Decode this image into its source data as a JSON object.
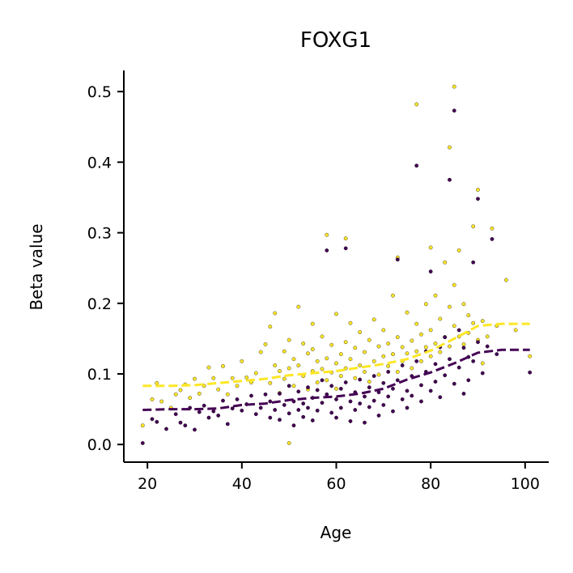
{
  "chart_data": {
    "type": "scatter",
    "title": "FOXG1",
    "xlabel": "Age",
    "ylabel": "Beta value",
    "xlim": [
      15,
      105
    ],
    "ylim": [
      -0.025,
      0.53
    ],
    "xticks": [
      20,
      40,
      60,
      80,
      100
    ],
    "xtick_labels": [
      "20",
      "40",
      "60",
      "80",
      "100"
    ],
    "yticks": [
      0.0,
      0.1,
      0.2,
      0.3,
      0.4,
      0.5
    ],
    "ytick_labels": [
      "0.0",
      "0.1",
      "0.2",
      "0.3",
      "0.4",
      "0.5"
    ],
    "grid": false,
    "series": [
      {
        "color": "#fde725",
        "trend_x": [
          19,
          25,
          30,
          35,
          40,
          45,
          50,
          55,
          60,
          65,
          70,
          75,
          80,
          85,
          90,
          95,
          101
        ],
        "trend_y": [
          0.083,
          0.083,
          0.084,
          0.087,
          0.09,
          0.093,
          0.098,
          0.101,
          0.104,
          0.109,
          0.114,
          0.121,
          0.133,
          0.15,
          0.168,
          0.171,
          0.171
        ],
        "points": [
          [
            19,
            0.027
          ],
          [
            21,
            0.064
          ],
          [
            22,
            0.087
          ],
          [
            23,
            0.061
          ],
          [
            25,
            0.052
          ],
          [
            26,
            0.071
          ],
          [
            27,
            0.077
          ],
          [
            28,
            0.085
          ],
          [
            29,
            0.066
          ],
          [
            30,
            0.093
          ],
          [
            31,
            0.072
          ],
          [
            32,
            0.083
          ],
          [
            33,
            0.109
          ],
          [
            34,
            0.094
          ],
          [
            35,
            0.078
          ],
          [
            36,
            0.111
          ],
          [
            37,
            0.071
          ],
          [
            38,
            0.094
          ],
          [
            39,
            0.083
          ],
          [
            40,
            0.118
          ],
          [
            41,
            0.095
          ],
          [
            42,
            0.088
          ],
          [
            43,
            0.101
          ],
          [
            44,
            0.131
          ],
          [
            45,
            0.142
          ],
          [
            46,
            0.087
          ],
          [
            46,
            0.167
          ],
          [
            47,
            0.112
          ],
          [
            47,
            0.186
          ],
          [
            48,
            0.104
          ],
          [
            48,
            0.073
          ],
          [
            49,
            0.132
          ],
          [
            49,
            0.093
          ],
          [
            50,
            0.108
          ],
          [
            50,
            0.148
          ],
          [
            50,
            0.002
          ],
          [
            51,
            0.121
          ],
          [
            51,
            0.083
          ],
          [
            52,
            0.195
          ],
          [
            52,
            0.112
          ],
          [
            53,
            0.143
          ],
          [
            53,
            0.097
          ],
          [
            54,
            0.129
          ],
          [
            54,
            0.078
          ],
          [
            55,
            0.171
          ],
          [
            55,
            0.104
          ],
          [
            55,
            0.135
          ],
          [
            56,
            0.118
          ],
          [
            56,
            0.088
          ],
          [
            57,
            0.153
          ],
          [
            57,
            0.107
          ],
          [
            58,
            0.297
          ],
          [
            58,
            0.122
          ],
          [
            58,
            0.091
          ],
          [
            59,
            0.141
          ],
          [
            59,
            0.102
          ],
          [
            60,
            0.185
          ],
          [
            60,
            0.115
          ],
          [
            60,
            0.079
          ],
          [
            61,
            0.128
          ],
          [
            61,
            0.097
          ],
          [
            62,
            0.292
          ],
          [
            62,
            0.145
          ],
          [
            62,
            0.108
          ],
          [
            63,
            0.172
          ],
          [
            63,
            0.121
          ],
          [
            64,
            0.094
          ],
          [
            64,
            0.137
          ],
          [
            65,
            0.112
          ],
          [
            65,
            0.159
          ],
          [
            66,
            0.103
          ],
          [
            66,
            0.131
          ],
          [
            67,
            0.089
          ],
          [
            67,
            0.148
          ],
          [
            68,
            0.118
          ],
          [
            68,
            0.177
          ],
          [
            69,
            0.099
          ],
          [
            69,
            0.139
          ],
          [
            70,
            0.125
          ],
          [
            70,
            0.162
          ],
          [
            71,
            0.111
          ],
          [
            71,
            0.143
          ],
          [
            72,
            0.211
          ],
          [
            72,
            0.128
          ],
          [
            73,
            0.265
          ],
          [
            73,
            0.103
          ],
          [
            73,
            0.152
          ],
          [
            74,
            0.138
          ],
          [
            74,
            0.118
          ],
          [
            75,
            0.187
          ],
          [
            75,
            0.129
          ],
          [
            76,
            0.147
          ],
          [
            76,
            0.108
          ],
          [
            77,
            0.482
          ],
          [
            77,
            0.171
          ],
          [
            77,
            0.132
          ],
          [
            78,
            0.156
          ],
          [
            78,
            0.118
          ],
          [
            79,
            0.199
          ],
          [
            79,
            0.138
          ],
          [
            80,
            0.279
          ],
          [
            80,
            0.162
          ],
          [
            80,
            0.125
          ],
          [
            81,
            0.211
          ],
          [
            81,
            0.143
          ],
          [
            82,
            0.178
          ],
          [
            82,
            0.131
          ],
          [
            83,
            0.258
          ],
          [
            83,
            0.152
          ],
          [
            84,
            0.421
          ],
          [
            84,
            0.195
          ],
          [
            84,
            0.139
          ],
          [
            85,
            0.507
          ],
          [
            85,
            0.226
          ],
          [
            85,
            0.168
          ],
          [
            86,
            0.275
          ],
          [
            86,
            0.153
          ],
          [
            87,
            0.199
          ],
          [
            87,
            0.142
          ],
          [
            88,
            0.183
          ],
          [
            88,
            0.158
          ],
          [
            89,
            0.309
          ],
          [
            89,
            0.172
          ],
          [
            90,
            0.361
          ],
          [
            90,
            0.148
          ],
          [
            91,
            0.115
          ],
          [
            91,
            0.175
          ],
          [
            92,
            0.153
          ],
          [
            93,
            0.306
          ],
          [
            94,
            0.168
          ],
          [
            96,
            0.233
          ],
          [
            98,
            0.162
          ],
          [
            101,
            0.125
          ]
        ]
      },
      {
        "color": "#440154",
        "trend_x": [
          19,
          25,
          30,
          35,
          40,
          45,
          50,
          55,
          60,
          65,
          70,
          75,
          80,
          85,
          90,
          95,
          101
        ],
        "trend_y": [
          0.049,
          0.05,
          0.05,
          0.051,
          0.056,
          0.058,
          0.063,
          0.066,
          0.068,
          0.072,
          0.079,
          0.092,
          0.102,
          0.115,
          0.13,
          0.134,
          0.134
        ],
        "points": [
          [
            19,
            0.002
          ],
          [
            21,
            0.036
          ],
          [
            22,
            0.032
          ],
          [
            24,
            0.022
          ],
          [
            26,
            0.043
          ],
          [
            27,
            0.031
          ],
          [
            28,
            0.027
          ],
          [
            29,
            0.052
          ],
          [
            30,
            0.021
          ],
          [
            31,
            0.046
          ],
          [
            32,
            0.055
          ],
          [
            33,
            0.038
          ],
          [
            34,
            0.047
          ],
          [
            35,
            0.041
          ],
          [
            36,
            0.062
          ],
          [
            37,
            0.029
          ],
          [
            38,
            0.051
          ],
          [
            39,
            0.064
          ],
          [
            40,
            0.048
          ],
          [
            41,
            0.057
          ],
          [
            42,
            0.069
          ],
          [
            43,
            0.043
          ],
          [
            44,
            0.052
          ],
          [
            45,
            0.071
          ],
          [
            46,
            0.038
          ],
          [
            46,
            0.061
          ],
          [
            47,
            0.049
          ],
          [
            48,
            0.072
          ],
          [
            48,
            0.035
          ],
          [
            49,
            0.056
          ],
          [
            50,
            0.044
          ],
          [
            50,
            0.083
          ],
          [
            51,
            0.061
          ],
          [
            51,
            0.027
          ],
          [
            52,
            0.075
          ],
          [
            52,
            0.049
          ],
          [
            53,
            0.058
          ],
          [
            53,
            0.039
          ],
          [
            54,
            0.081
          ],
          [
            54,
            0.052
          ],
          [
            55,
            0.066
          ],
          [
            55,
            0.034
          ],
          [
            56,
            0.077
          ],
          [
            56,
            0.048
          ],
          [
            57,
            0.059
          ],
          [
            57,
            0.091
          ],
          [
            58,
            0.275
          ],
          [
            58,
            0.071
          ],
          [
            59,
            0.045
          ],
          [
            59,
            0.083
          ],
          [
            60,
            0.064
          ],
          [
            60,
            0.038
          ],
          [
            61,
            0.079
          ],
          [
            61,
            0.052
          ],
          [
            62,
            0.278
          ],
          [
            62,
            0.088
          ],
          [
            63,
            0.061
          ],
          [
            63,
            0.033
          ],
          [
            64,
            0.074
          ],
          [
            64,
            0.049
          ],
          [
            65,
            0.092
          ],
          [
            65,
            0.058
          ],
          [
            66,
            0.068
          ],
          [
            66,
            0.031
          ],
          [
            67,
            0.081
          ],
          [
            67,
            0.053
          ],
          [
            68,
            0.097
          ],
          [
            68,
            0.062
          ],
          [
            69,
            0.074
          ],
          [
            69,
            0.041
          ],
          [
            70,
            0.087
          ],
          [
            70,
            0.056
          ],
          [
            71,
            0.103
          ],
          [
            71,
            0.068
          ],
          [
            72,
            0.079
          ],
          [
            72,
            0.047
          ],
          [
            73,
            0.262
          ],
          [
            73,
            0.091
          ],
          [
            74,
            0.064
          ],
          [
            74,
            0.112
          ],
          [
            75,
            0.076
          ],
          [
            75,
            0.052
          ],
          [
            76,
            0.097
          ],
          [
            76,
            0.069
          ],
          [
            77,
            0.395
          ],
          [
            77,
            0.118
          ],
          [
            78,
            0.084
          ],
          [
            78,
            0.061
          ],
          [
            79,
            0.103
          ],
          [
            79,
            0.132
          ],
          [
            80,
            0.245
          ],
          [
            80,
            0.076
          ],
          [
            81,
            0.114
          ],
          [
            81,
            0.089
          ],
          [
            82,
            0.138
          ],
          [
            82,
            0.067
          ],
          [
            83,
            0.152
          ],
          [
            83,
            0.098
          ],
          [
            84,
            0.375
          ],
          [
            84,
            0.121
          ],
          [
            85,
            0.473
          ],
          [
            85,
            0.086
          ],
          [
            86,
            0.162
          ],
          [
            86,
            0.109
          ],
          [
            87,
            0.137
          ],
          [
            87,
            0.072
          ],
          [
            88,
            0.124
          ],
          [
            88,
            0.091
          ],
          [
            89,
            0.258
          ],
          [
            89,
            0.118
          ],
          [
            90,
            0.348
          ],
          [
            90,
            0.145
          ],
          [
            91,
            0.101
          ],
          [
            92,
            0.139
          ],
          [
            93,
            0.291
          ],
          [
            94,
            0.128
          ],
          [
            101,
            0.102
          ]
        ]
      }
    ]
  }
}
